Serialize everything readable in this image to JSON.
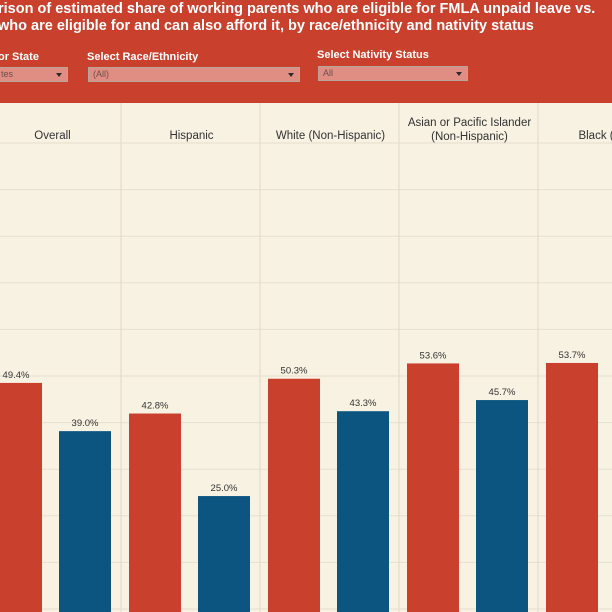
{
  "header": {
    "title_line_1": "rison of estimated share of working parents who are eligible for FMLA unpaid leave vs.",
    "title_line_2": "who are eligible for and can also afford it, by race/ethnicity and nativity status",
    "background": "#c9412c"
  },
  "filters": {
    "state": {
      "label": "or State",
      "value": "tes"
    },
    "race": {
      "label": "Select Race/Ethnicity",
      "value": "(All)"
    },
    "nativity": {
      "label": "Select Nativity Status",
      "value": "All"
    }
  },
  "chart_data": {
    "type": "bar",
    "categories": [
      "Overall",
      "Hispanic",
      "White (Non-Hispanic)",
      "Asian or Pacific Islander (Non-Hispanic)",
      "Black (Non-"
    ],
    "category_lines": [
      [
        "Overall"
      ],
      [
        "Hispanic"
      ],
      [
        "White (Non-Hispanic)"
      ],
      [
        "Asian or Pacific Islander",
        "(Non-Hispanic)"
      ],
      [
        "Black (Non-"
      ]
    ],
    "series": [
      {
        "color": "#c9412c",
        "values": [
          49.4,
          42.8,
          50.3,
          53.6,
          53.7
        ],
        "labels": [
          "49.4%",
          "42.8%",
          "50.3%",
          "53.6%",
          "53.7%"
        ]
      },
      {
        "color": "#0b5580",
        "values": [
          39.0,
          25.0,
          43.3,
          45.7,
          null
        ],
        "labels": [
          "39.0%",
          "25.0%",
          "43.3%",
          "45.7%",
          ""
        ]
      }
    ],
    "ylim": [
      0,
      100
    ],
    "grid": true,
    "title": "",
    "xlabel": "",
    "ylabel": ""
  }
}
